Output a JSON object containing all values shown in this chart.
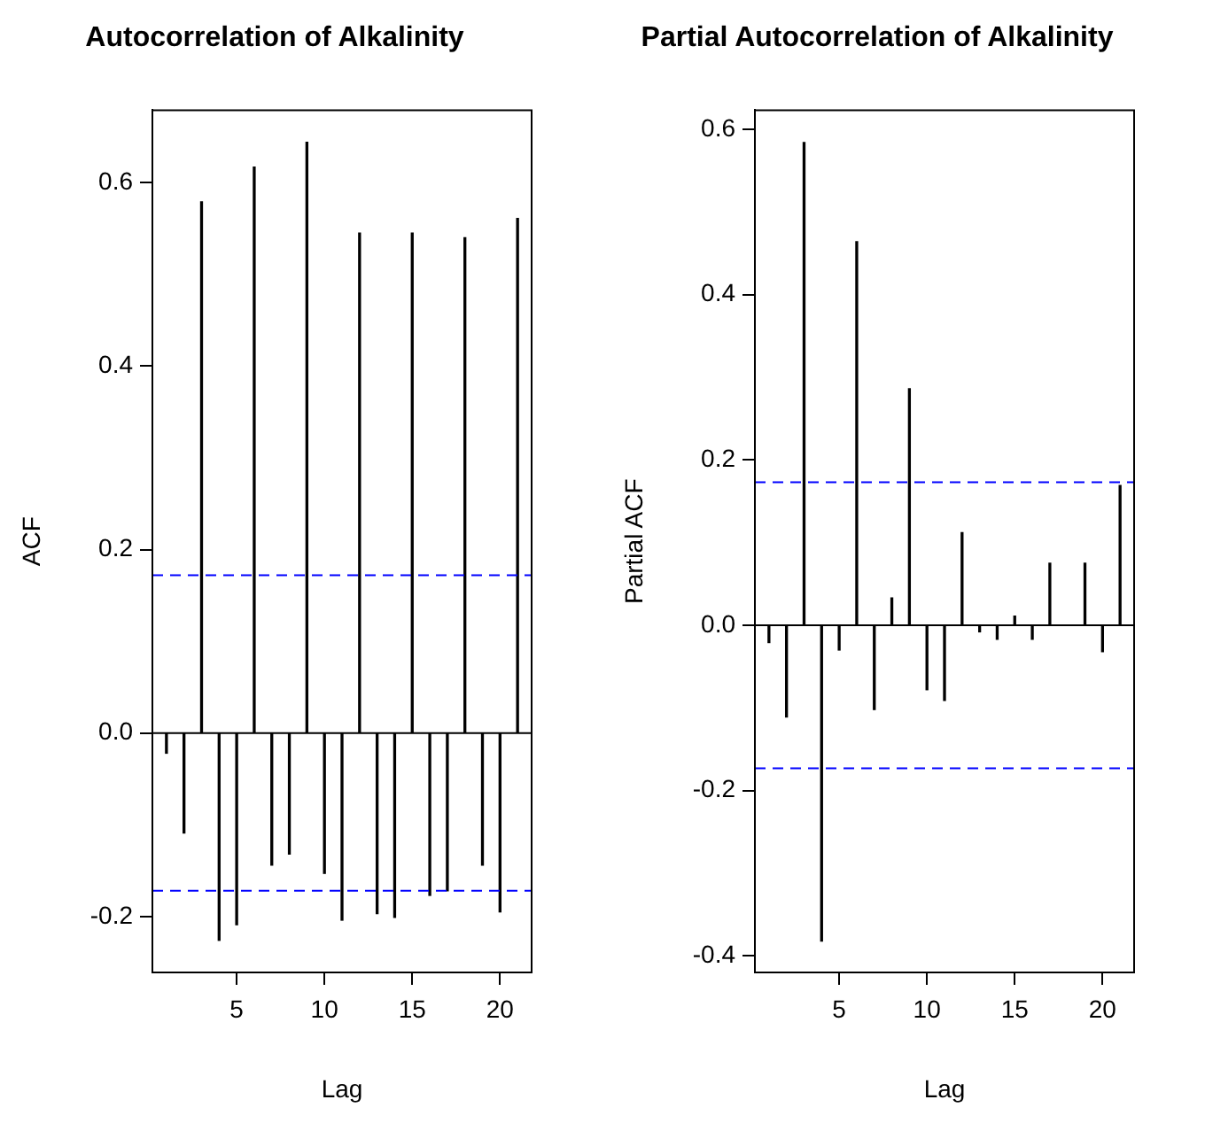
{
  "chart_data": [
    {
      "type": "bar",
      "title": "Autocorrelation of Alkalinity",
      "xlabel": "Lag",
      "ylabel": "ACF",
      "color": "#000000",
      "x": [
        1,
        2,
        3,
        4,
        5,
        6,
        7,
        8,
        9,
        10,
        11,
        12,
        13,
        14,
        15,
        16,
        17,
        18,
        19,
        20,
        21
      ],
      "values": [
        -0.022,
        -0.109,
        0.579,
        -0.226,
        -0.209,
        0.617,
        -0.144,
        -0.132,
        0.644,
        -0.153,
        -0.204,
        0.545,
        -0.197,
        -0.201,
        0.545,
        -0.177,
        -0.172,
        0.54,
        -0.144,
        -0.195,
        0.561
      ],
      "xlim": [
        0.2,
        21.8
      ],
      "xticks": [
        5,
        10,
        15,
        20
      ],
      "ylim": [
        -0.261,
        0.679
      ],
      "yticks": [
        {
          "value": -0.2,
          "label": "-0.2"
        },
        {
          "value": 0,
          "label": "0.0"
        },
        {
          "value": 0.2,
          "label": "0.2"
        },
        {
          "value": 0.4,
          "label": "0.4"
        },
        {
          "value": 0.6,
          "label": "0.6"
        }
      ],
      "ref_lines": [
        {
          "axis": "y",
          "value": 0,
          "color": "#000000",
          "line_style": "solid"
        },
        {
          "axis": "y",
          "value": 0.172,
          "color": "#0000ff",
          "line_style": "dashed"
        },
        {
          "axis": "y",
          "value": -0.172,
          "color": "#0000ff",
          "line_style": "dashed"
        }
      ]
    },
    {
      "type": "bar",
      "title": "Partial Autocorrelation of Alkalinity",
      "xlabel": "Lag",
      "ylabel": "Partial ACF",
      "color": "#000000",
      "x": [
        1,
        2,
        3,
        4,
        5,
        6,
        7,
        8,
        9,
        10,
        11,
        12,
        13,
        14,
        15,
        16,
        17,
        18,
        19,
        20,
        21
      ],
      "values": [
        -0.021,
        -0.111,
        0.584,
        -0.382,
        -0.03,
        0.464,
        -0.102,
        0.033,
        0.286,
        -0.078,
        -0.091,
        0.112,
        -0.008,
        -0.017,
        0.011,
        -0.017,
        0.075,
        0,
        0.075,
        -0.032,
        0.169
      ],
      "xlim": [
        0.2,
        21.8
      ],
      "xticks": [
        5,
        10,
        15,
        20
      ],
      "ylim": [
        -0.42,
        0.623
      ],
      "yticks": [
        {
          "value": -0.4,
          "label": "-0.4"
        },
        {
          "value": -0.2,
          "label": "-0.2"
        },
        {
          "value": 0,
          "label": "0.0"
        },
        {
          "value": 0.2,
          "label": "0.2"
        },
        {
          "value": 0.4,
          "label": "0.4"
        },
        {
          "value": 0.6,
          "label": "0.6"
        }
      ],
      "ref_lines": [
        {
          "axis": "y",
          "value": 0,
          "color": "#000000",
          "line_style": "solid"
        },
        {
          "axis": "y",
          "value": 0.173,
          "color": "#0000ff",
          "line_style": "dashed"
        },
        {
          "axis": "y",
          "value": -0.173,
          "color": "#0000ff",
          "line_style": "dashed"
        }
      ]
    }
  ]
}
